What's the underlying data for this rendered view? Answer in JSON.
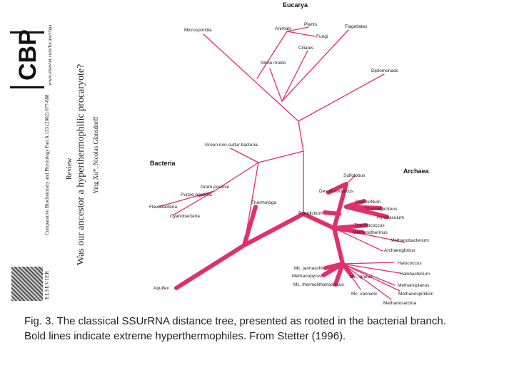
{
  "journal": {
    "logo_text": "CBP",
    "url": "www.elsevier.com/locate/cbpa",
    "citation": "Comparative Biochemistry and Physiology Part A 133 (2002) 677-688",
    "publisher": "ELSEVIER"
  },
  "article": {
    "type": "Review",
    "title": "Was our ancestor a hyperthermophilic procaryote?",
    "authors": "Ying Xu*, Nicolas Glansdorff"
  },
  "groups": {
    "eucarya": "Eucarya",
    "bacteria": "Bacteria",
    "archaea": "Archaea"
  },
  "taxa": {
    "microsporidia": "Microsporidia",
    "animals": "Animals",
    "plants": "Plants",
    "fungi": "Fungi",
    "flagellates": "Flagellates",
    "ciliates": "Ciliates",
    "slime_molds": "Slime molds",
    "diplomonads": "Diplomonads",
    "green_non_sulfur": "Green non-sulfur bacteria",
    "gram_positive": "Gram positive",
    "purple_bacteria": "Purple bacteria",
    "flavobacteria": "Flavobacteria",
    "cyanobacteria": "Cyanobacteria",
    "thermotoga": "Thermotoga",
    "aquifex": "Aquifex",
    "sulfolobus": "Sulfolobus",
    "desulfurococcus": "Desulfurococcus",
    "thermofilum": "Thermofilum",
    "thermoproteus": "Thermoproteus",
    "pyrodictium": "Pyrodictium",
    "pyrobaculum": "Pyrobaculum",
    "thermococcus": "Thermococcus",
    "methanothermus": "Methanothermus",
    "methanobacterium": "Methanobacterium",
    "archaeoglobus": "Archaeoglobus",
    "mc_jannaschii": "Mc. jannaschii",
    "methanopyrus": "Methanopyrus",
    "mc_igneus": "Mc. igneus",
    "halococcus": "Halococcus",
    "halobacterium": "Halobacterium",
    "mc_thermolithotrophicus": "Mc. thermolithotrophicus",
    "methanoplanus": "Methanoplanus",
    "mc_vannielii": "Mc. vannielii",
    "methanospirillum": "Methanospirillum",
    "methanosarcina": "Methanosarcina"
  },
  "caption": {
    "line1": "Fig. 3. The classical SSUrRNA distance tree, presented as rooted in the bacterial branch.",
    "line2": "Bold lines indicate extreme hyperthermophiles. From Stetter (1996)."
  },
  "colors": {
    "branch": "#e0306a"
  }
}
